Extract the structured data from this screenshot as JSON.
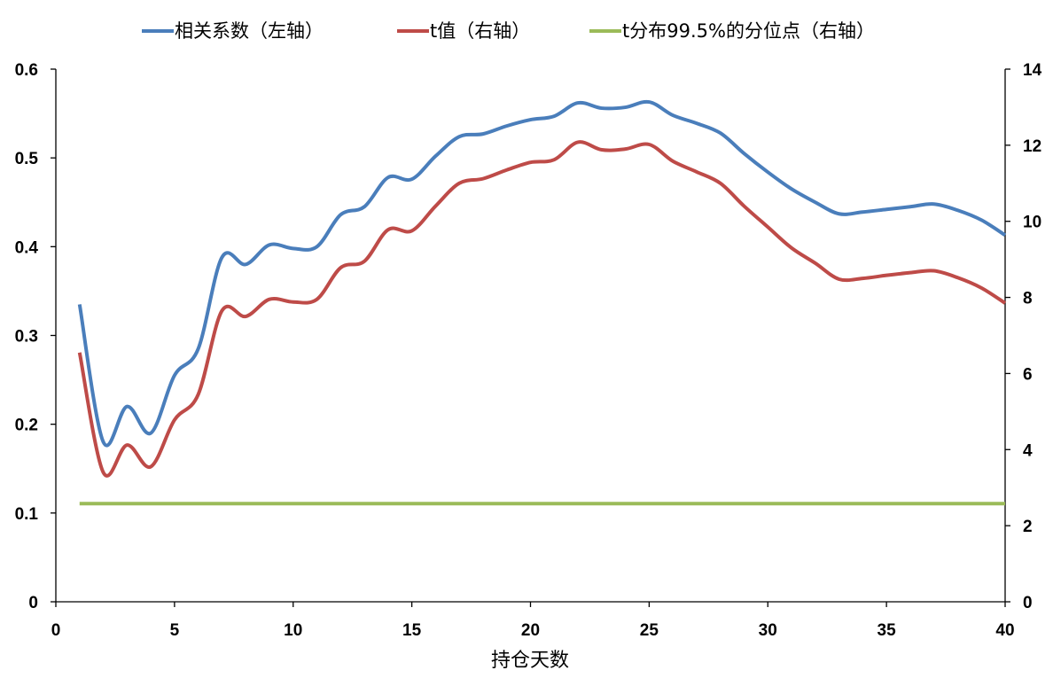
{
  "chart_data": {
    "type": "line",
    "xlabel": "持仓天数",
    "x_ticks": [
      "0",
      "5",
      "10",
      "15",
      "20",
      "25",
      "30",
      "35",
      "40"
    ],
    "xlim": [
      0,
      40
    ],
    "y_left_ticks": [
      "0",
      "0.1",
      "0.2",
      "0.3",
      "0.4",
      "0.5",
      "0.6"
    ],
    "y_left_lim": [
      0,
      0.6
    ],
    "y_right_ticks": [
      "0",
      "2",
      "4",
      "6",
      "8",
      "10",
      "12",
      "14"
    ],
    "y_right_lim": [
      0,
      14
    ],
    "grid": false,
    "legend_position": "top",
    "x": [
      1,
      2,
      3,
      4,
      5,
      6,
      7,
      8,
      9,
      10,
      11,
      12,
      13,
      14,
      15,
      16,
      17,
      18,
      19,
      20,
      21,
      22,
      23,
      24,
      25,
      26,
      27,
      28,
      29,
      30,
      31,
      32,
      33,
      34,
      35,
      36,
      37,
      38,
      39,
      40
    ],
    "series": [
      {
        "name": "相关系数（左轴）",
        "axis": "left",
        "color": "#4a7ebb",
        "values": [
          0.335,
          0.18,
          0.22,
          0.19,
          0.255,
          0.285,
          0.388,
          0.38,
          0.402,
          0.398,
          0.4,
          0.436,
          0.445,
          0.478,
          0.476,
          0.502,
          0.524,
          0.527,
          0.536,
          0.543,
          0.547,
          0.562,
          0.556,
          0.557,
          0.563,
          0.548,
          0.539,
          0.528,
          0.505,
          0.484,
          0.465,
          0.45,
          0.437,
          0.439,
          0.442,
          0.445,
          0.448,
          0.441,
          0.43,
          0.413
        ]
      },
      {
        "name": "t值（右轴）",
        "axis": "right",
        "color": "#be4b48",
        "values": [
          6.55,
          3.4,
          4.12,
          3.55,
          4.78,
          5.45,
          7.65,
          7.5,
          7.95,
          7.88,
          7.95,
          8.78,
          8.95,
          9.78,
          9.75,
          10.4,
          11.0,
          11.12,
          11.35,
          11.55,
          11.62,
          12.08,
          11.88,
          11.9,
          12.02,
          11.58,
          11.3,
          11.0,
          10.4,
          9.85,
          9.3,
          8.9,
          8.48,
          8.5,
          8.58,
          8.65,
          8.7,
          8.52,
          8.25,
          7.85
        ]
      },
      {
        "name": "t分布99.5%的分位点（右轴）",
        "axis": "right",
        "color": "#9bbb59",
        "values": [
          2.58,
          2.58,
          2.58,
          2.58,
          2.58,
          2.58,
          2.58,
          2.58,
          2.58,
          2.58,
          2.58,
          2.58,
          2.58,
          2.58,
          2.58,
          2.58,
          2.58,
          2.58,
          2.58,
          2.58,
          2.58,
          2.58,
          2.58,
          2.58,
          2.58,
          2.58,
          2.58,
          2.58,
          2.58,
          2.58,
          2.58,
          2.58,
          2.58,
          2.58,
          2.58,
          2.58,
          2.58,
          2.58,
          2.58,
          2.58
        ]
      }
    ]
  }
}
